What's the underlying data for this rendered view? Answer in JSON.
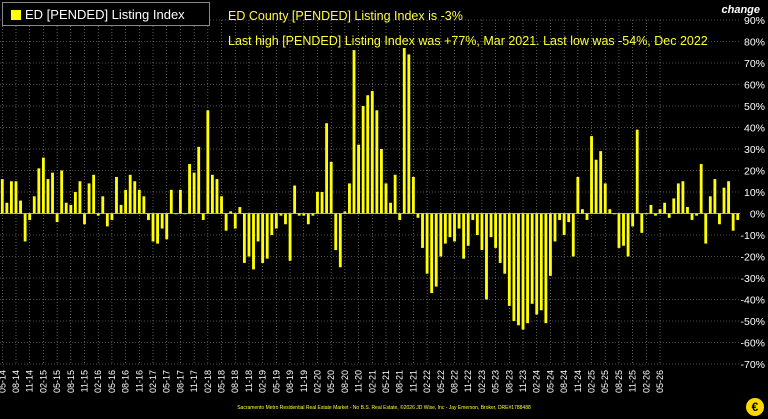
{
  "legend": {
    "label": "ED [PENDED] Listing Index",
    "color": "#ffff00"
  },
  "annotations": {
    "line1": "ED County [PENDED] Listing Index is -3%",
    "line2": "Last high [PENDED] Listing Index was +77%, Mar 2021. Last low was -54%, Dec 2022"
  },
  "axis_title": "change",
  "footer": "Sacramento Metro Residential Real Estate Market - No B.S. Real Estate, ©2026 JD Wise, Inc - Jay Emerson, Broker, DRE#1788488",
  "logo_text": "€",
  "colors": {
    "bar": "#ffff00",
    "background": "#000000",
    "grid": "#9a9a9a",
    "text": "#ffffff",
    "annotation": "#ffff33"
  },
  "chart_data": {
    "type": "bar",
    "ylabel": "change",
    "ylim": [
      -70,
      90
    ],
    "yticks": [
      90,
      80,
      70,
      60,
      50,
      40,
      30,
      20,
      10,
      0,
      -10,
      -20,
      -30,
      -40,
      -50,
      -60,
      -70
    ],
    "ytick_labels": [
      "90%",
      "80%",
      "70%",
      "60%",
      "50%",
      "40%",
      "30%",
      "20%",
      "10%",
      "0%",
      "-10%",
      "-20%",
      "-30%",
      "-40%",
      "-50%",
      "-60%",
      "-70%"
    ],
    "grid": true,
    "legend_position": "top-left",
    "x_tick_labels": [
      "05-14",
      "08-14",
      "11-14",
      "02-15",
      "05-15",
      "08-15",
      "11-15",
      "02-16",
      "05-16",
      "08-16",
      "11-16",
      "02-17",
      "05-17",
      "08-17",
      "11-17",
      "02-18",
      "05-18",
      "08-18",
      "11-18",
      "02-19",
      "05-19",
      "08-19",
      "11-19",
      "02-20",
      "05-20",
      "08-20",
      "11-20",
      "02-21",
      "05-21",
      "08-21",
      "11-21",
      "02-22",
      "05-22",
      "08-22",
      "11-22",
      "02-23",
      "05-23",
      "08-23",
      "11-23",
      "02-24",
      "05-24",
      "08-24",
      "11-24",
      "02-25",
      "05-25",
      "08-25",
      "11-25",
      "02-26",
      "05-26"
    ],
    "series": [
      {
        "name": "ED [PENDED] Listing Index",
        "start": "05-14",
        "values": [
          16,
          5,
          15,
          15,
          6,
          -13,
          -3,
          8,
          21,
          26,
          16,
          19,
          -4,
          20,
          5,
          4,
          10,
          15,
          -5,
          14,
          18,
          -1,
          8,
          -6,
          -3,
          17,
          4,
          11,
          18,
          15,
          11,
          8,
          -3,
          -13,
          -14,
          -7,
          -12,
          11,
          0,
          11,
          0,
          23,
          19,
          31,
          -3,
          48,
          18,
          16,
          8,
          -8,
          1,
          -7,
          3,
          -23,
          -20,
          -26,
          -13,
          -23,
          -21,
          -10,
          -7,
          -1,
          -5,
          -22,
          13,
          -1,
          -1,
          -5,
          -1,
          10,
          10,
          42,
          24,
          -17,
          -25,
          1,
          14,
          76,
          32,
          50,
          55,
          57,
          48,
          30,
          14,
          5,
          18,
          -3,
          77,
          74,
          17,
          -2,
          -16,
          -28,
          -37,
          -34,
          -20,
          -14,
          -11,
          -13,
          -7,
          -21,
          -15,
          -3,
          -10,
          -17,
          -40,
          -11,
          -16,
          -23,
          -28,
          -43,
          -50,
          -52,
          -54,
          -51,
          -42,
          -47,
          -45,
          -51,
          -29,
          -13,
          -3,
          -10,
          -4,
          -20,
          17,
          2,
          -3,
          36,
          25,
          29,
          14,
          2,
          0,
          -16,
          -15,
          -20,
          -6,
          39,
          -9,
          0,
          4,
          -1,
          2,
          5,
          -2,
          7,
          14,
          15,
          3,
          -3,
          -1,
          23,
          -14,
          8,
          16,
          -5,
          12,
          15,
          -8,
          -3
        ]
      }
    ]
  }
}
